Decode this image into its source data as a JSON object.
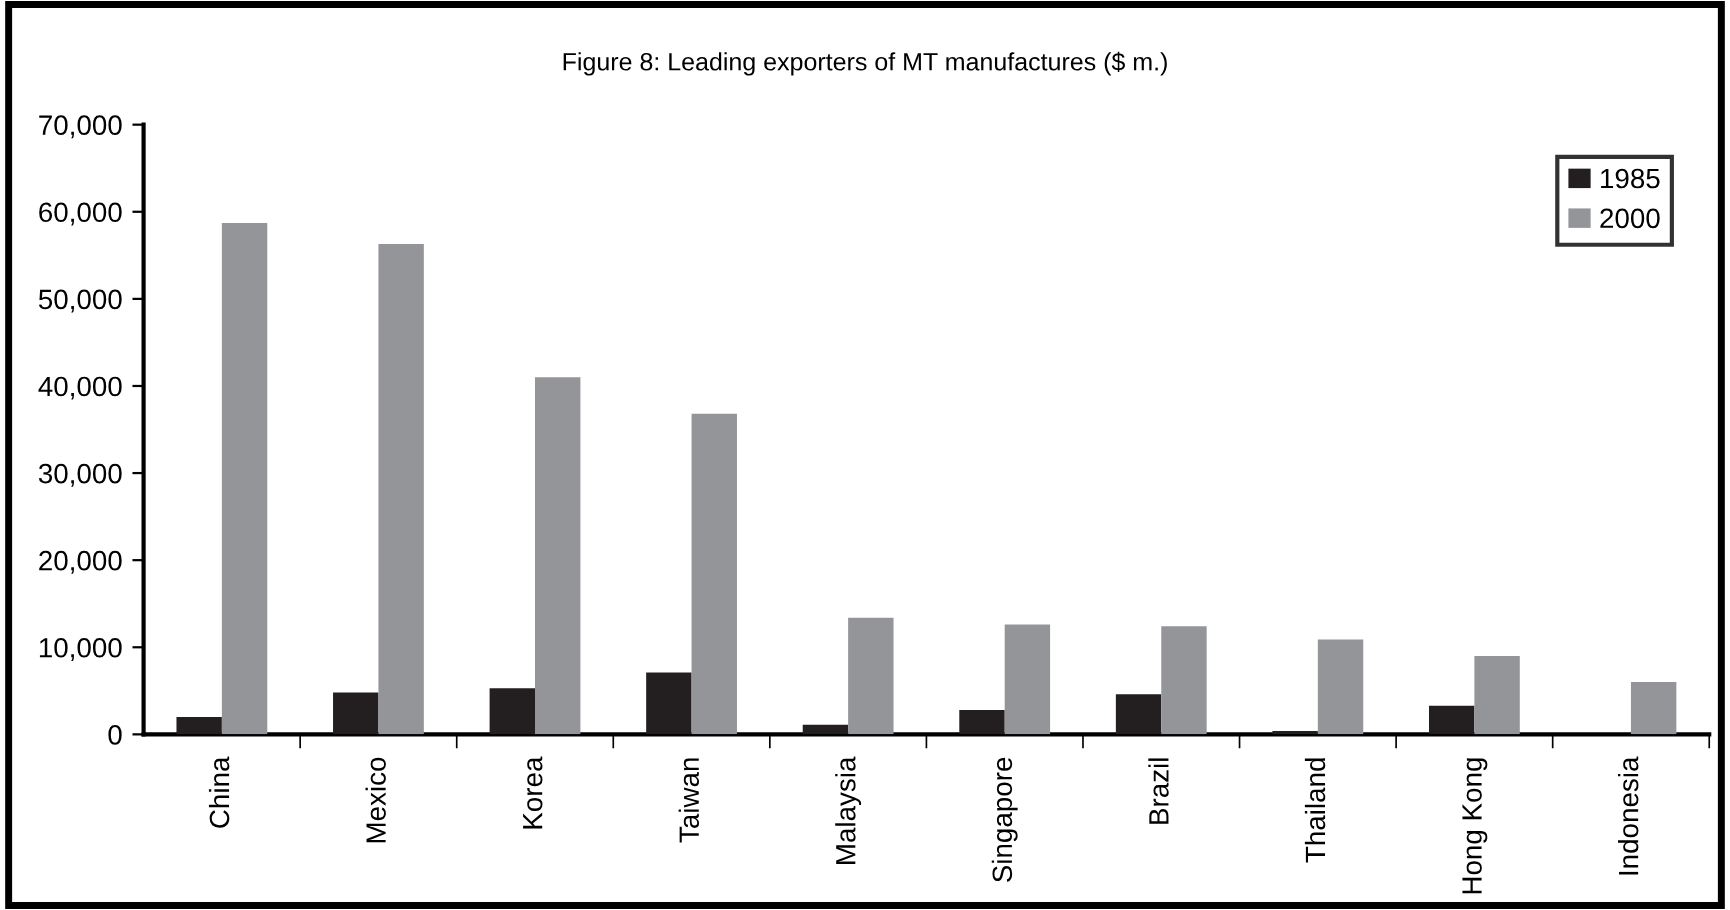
{
  "chart_data": {
    "type": "bar",
    "title": "Figure 8: Leading exporters of MT manufactures ($ m.)",
    "categories": [
      "China",
      "Mexico",
      "Korea",
      "Taiwan",
      "Malaysia",
      "Singapore",
      "Brazil",
      "Thailand",
      "Hong Kong",
      "Indonesia"
    ],
    "series": [
      {
        "name": "1985",
        "color": "#231f20",
        "values": [
          2000,
          4800,
          5300,
          7100,
          1100,
          2800,
          4600,
          400,
          3300,
          0
        ]
      },
      {
        "name": "2000",
        "color": "#939598",
        "values": [
          58700,
          56300,
          41000,
          36800,
          13400,
          12600,
          12400,
          10900,
          9000,
          6000
        ]
      }
    ],
    "ylim": [
      0,
      70000
    ],
    "yticks": [
      {
        "value": 0,
        "label": "0"
      },
      {
        "value": 10000,
        "label": "10,000"
      },
      {
        "value": 20000,
        "label": "20,000"
      },
      {
        "value": 30000,
        "label": "30,000"
      },
      {
        "value": 40000,
        "label": "40,000"
      },
      {
        "value": 50000,
        "label": "50,000"
      },
      {
        "value": 60000,
        "label": "60,000"
      },
      {
        "value": 70000,
        "label": "70,000"
      }
    ],
    "grid": false,
    "legend": "top right"
  }
}
